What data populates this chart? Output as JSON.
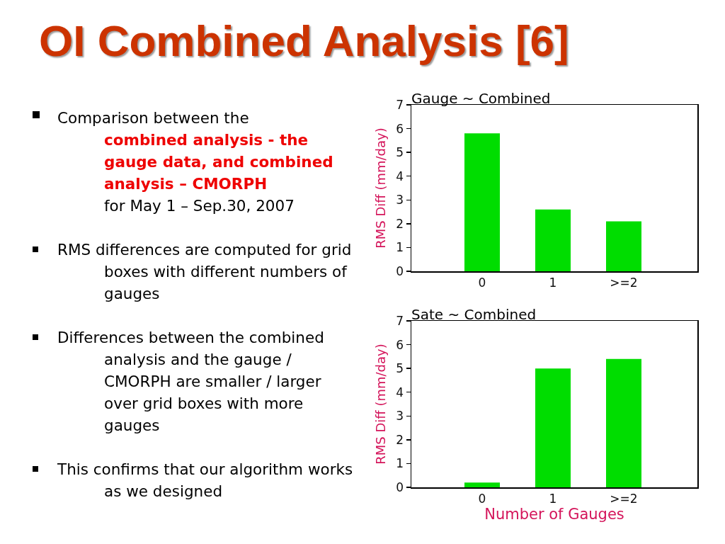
{
  "chart_data": [
    {
      "type": "other",
      "title": "OI Combined Analysis [6]",
      "annotations": [
        "Comparison between the",
        "combined analysis - the gauge data, and combined analysis – CMORPH",
        "for May 1 – Sep.30, 2007",
        "RMS differences are computed for grid boxes with different numbers of gauges",
        "Differences between the combined analysis and the gauge / CMORPH are smaller / larger over grid boxes with more gauges",
        "This confirms that our algorithm works as we designed"
      ]
    },
    {
      "type": "bar",
      "title": "Gauge ~ Combined",
      "ylabel": "RMS Diff (mm/day)",
      "categories": [
        "0",
        "1",
        ">=2"
      ],
      "values": [
        5.8,
        2.6,
        2.1
      ],
      "color": "#00dd00",
      "ylim": [
        0,
        7
      ],
      "yticks": [
        0,
        1,
        2,
        3,
        4,
        5,
        6,
        7
      ]
    },
    {
      "type": "bar",
      "title": "Sate ~ Combined",
      "xlabel": "Number of Gauges",
      "ylabel": "RMS Diff (mm/day)",
      "categories": [
        "0",
        "1",
        ">=2"
      ],
      "values": [
        0.2,
        5.0,
        5.4
      ],
      "color": "#00dd00",
      "ylim": [
        0,
        7
      ],
      "yticks": [
        0,
        1,
        2,
        3,
        4,
        5,
        6,
        7
      ]
    }
  ]
}
